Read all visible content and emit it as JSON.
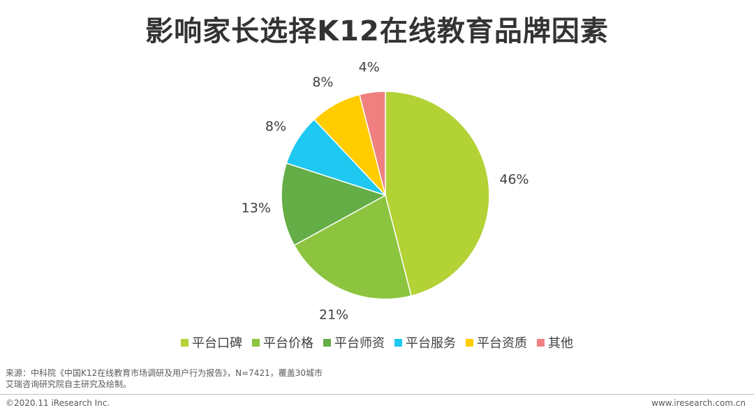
{
  "title": "影响家长选择K12在线教育品牌因素",
  "chart_data": {
    "type": "pie",
    "title": "影响家长选择K12在线教育品牌因素",
    "slices": [
      {
        "label": "平台口碑",
        "value": 46,
        "value_label": "46%",
        "color": "#b3d235"
      },
      {
        "label": "平台价格",
        "value": 21,
        "value_label": "21%",
        "color": "#8cc43f"
      },
      {
        "label": "平台师资",
        "value": 13,
        "value_label": "13%",
        "color": "#64ad47"
      },
      {
        "label": "平台服务",
        "value": 8,
        "value_label": "8%",
        "color": "#1ec8f0"
      },
      {
        "label": "平台资质",
        "value": 8,
        "value_label": "8%",
        "color": "#ffcc00"
      },
      {
        "label": "其他",
        "value": 4,
        "value_label": "4%",
        "color": "#f08080"
      }
    ],
    "start": "top",
    "direction": "clockwise",
    "legend_position": "bottom"
  },
  "source": {
    "line1": "来源：中科院《中国K12在线教育市场调研及用户行为报告》，N=7421，覆盖30城市",
    "line2": "艾瑞咨询研究院自主研究及绘制。"
  },
  "footer": {
    "copyright": "©2020.11 iResearch Inc.",
    "website": "www.iresearch.com.cn"
  }
}
